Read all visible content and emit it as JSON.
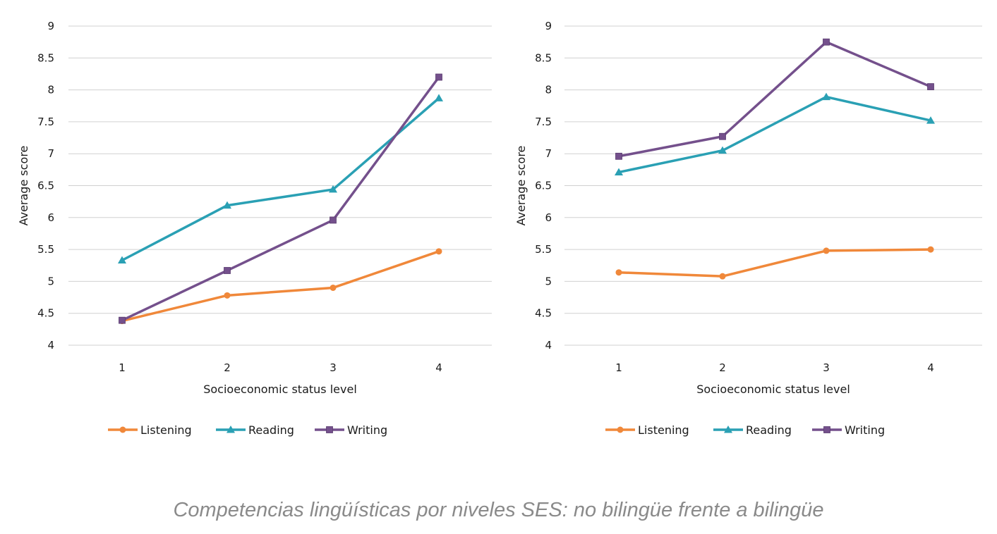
{
  "caption": "Competencias lingüísticas por niveles SES: no bilingüe frente a bilingüe",
  "colors": {
    "Listening": "#f0883a",
    "Reading": "#2aa0b4",
    "Writing": "#74508c",
    "grid": "#d0d0d0"
  },
  "chart_data": [
    {
      "type": "line",
      "title": "",
      "xlabel": "Socioeconomic status level",
      "ylabel": "Average score",
      "categories": [
        "1",
        "2",
        "3",
        "4"
      ],
      "yticks": [
        "4",
        "4.5",
        "5",
        "5.5",
        "6",
        "6.5",
        "7",
        "7.5",
        "8",
        "8.5",
        "9"
      ],
      "ylim": [
        4,
        9
      ],
      "grid": true,
      "legend_position": "bottom",
      "series": [
        {
          "name": "Listening",
          "marker": "circle",
          "values": [
            4.38,
            4.78,
            4.9,
            5.47
          ]
        },
        {
          "name": "Reading",
          "marker": "triangle",
          "values": [
            5.33,
            6.19,
            6.44,
            7.87
          ]
        },
        {
          "name": "Writing",
          "marker": "square",
          "values": [
            4.39,
            5.17,
            5.96,
            8.2
          ]
        }
      ]
    },
    {
      "type": "line",
      "title": "",
      "xlabel": "Socioeconomic status level",
      "ylabel": "Average score",
      "categories": [
        "1",
        "2",
        "3",
        "4"
      ],
      "yticks": [
        "4",
        "4.5",
        "5",
        "5.5",
        "6",
        "6.5",
        "7",
        "7.5",
        "8",
        "8.5",
        "9"
      ],
      "ylim": [
        4,
        9
      ],
      "grid": true,
      "legend_position": "bottom",
      "series": [
        {
          "name": "Listening",
          "marker": "circle",
          "values": [
            5.14,
            5.08,
            5.48,
            5.5
          ]
        },
        {
          "name": "Reading",
          "marker": "triangle",
          "values": [
            6.71,
            7.05,
            7.89,
            7.52
          ]
        },
        {
          "name": "Writing",
          "marker": "square",
          "values": [
            6.96,
            7.27,
            8.75,
            8.05
          ]
        }
      ]
    }
  ]
}
